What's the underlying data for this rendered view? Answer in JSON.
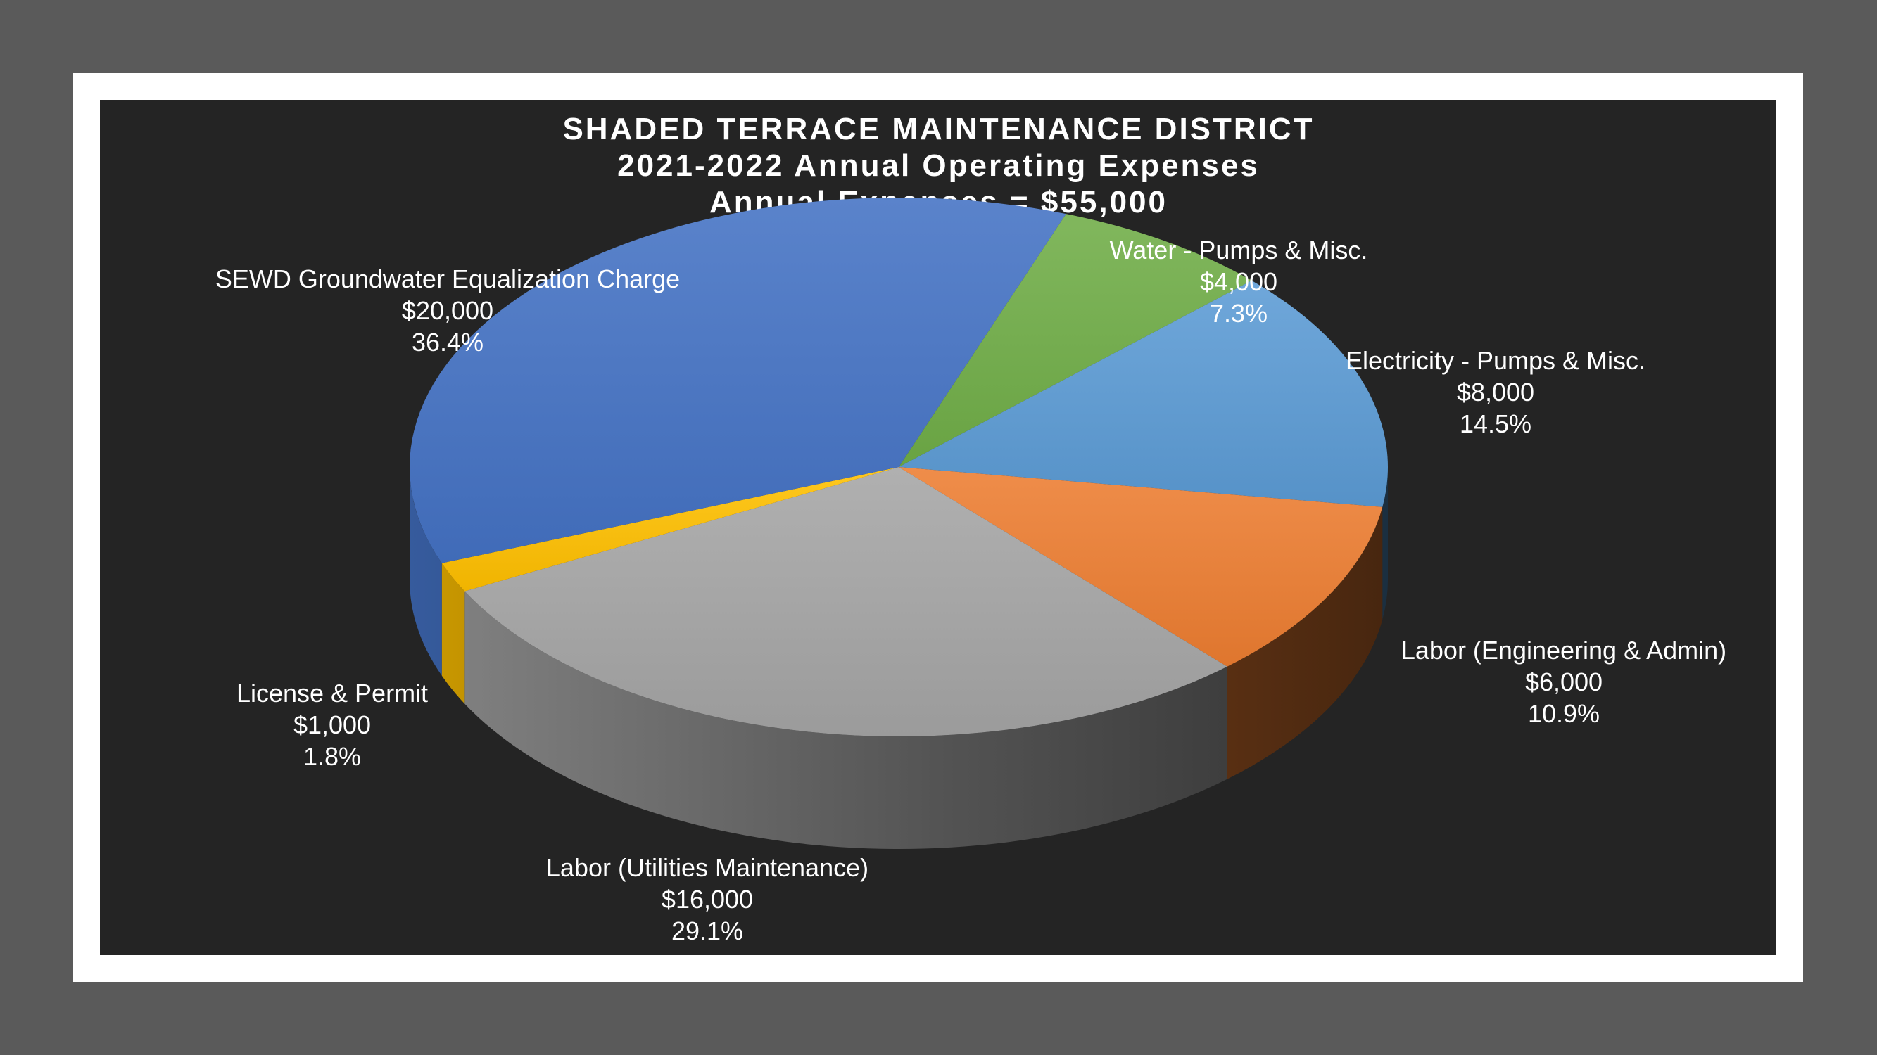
{
  "chart_data": {
    "type": "pie",
    "title": "SHADED TERRACE MAINTENANCE DISTRICT",
    "subtitle": "2021-2022 Annual Operating Expenses",
    "subtitle2": "Annual Expenses = $55,000",
    "slices": [
      {
        "label": "Water - Pumps & Misc.",
        "value": 4000,
        "value_text": "$4,000",
        "percent_text": "7.3%",
        "color": "#70ad47"
      },
      {
        "label": "Electricity - Pumps & Misc.",
        "value": 8000,
        "value_text": "$8,000",
        "percent_text": "14.5%",
        "color": "#5b9bd5"
      },
      {
        "label": "Labor (Engineering & Admin)",
        "value": 6000,
        "value_text": "$6,000",
        "percent_text": "10.9%",
        "color": "#ed7d31"
      },
      {
        "label": "Labor (Utilities Maintenance)",
        "value": 16000,
        "value_text": "$16,000",
        "percent_text": "29.1%",
        "color": "#a5a5a5"
      },
      {
        "label": "License & Permit",
        "value": 1000,
        "value_text": "$1,000",
        "percent_text": "1.8%",
        "color": "#ffc000"
      },
      {
        "label": "SEWD Groundwater Equalization Charge",
        "value": 20000,
        "value_text": "$20,000",
        "percent_text": "36.4%",
        "color": "#4472c4"
      }
    ]
  }
}
